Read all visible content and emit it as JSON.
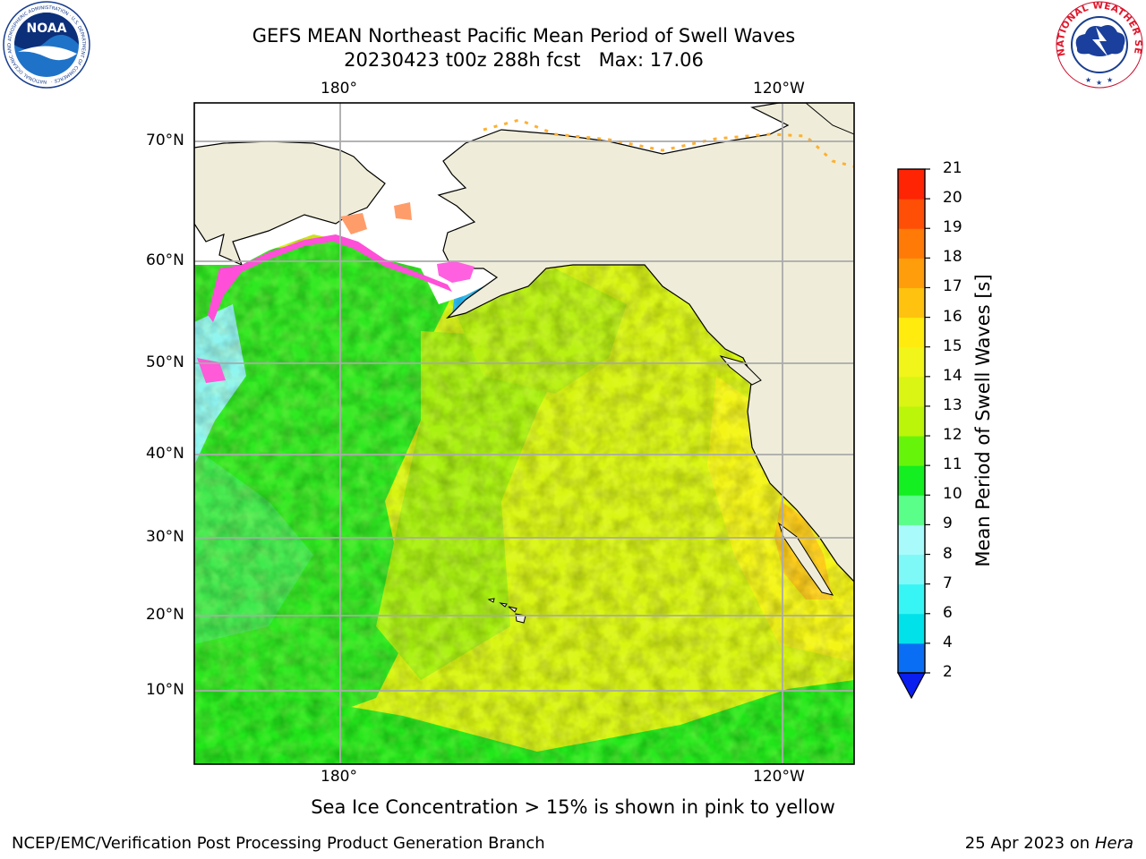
{
  "header": {
    "title_line1": "GEFS MEAN Northeast Pacific Mean Period of Swell Waves",
    "title_line2": "20230423 t00z 288h fcst   Max: 17.06"
  },
  "logos": {
    "left": "NOAA",
    "left_ring": "NATIONAL OCEANIC AND ATMOSPHERIC ADMINISTRATION · U.S. DEPARTMENT OF COMMERCE ·",
    "right_ring": "NATIONAL WEATHER SERVICE"
  },
  "map": {
    "lon_labels_top": [
      "180°",
      "120°W"
    ],
    "lon_labels_bottom": [
      "180°",
      "120°W"
    ],
    "lat_labels": [
      "70°N",
      "60°N",
      "50°N",
      "40°N",
      "30°N",
      "20°N",
      "10°N"
    ],
    "colors": {
      "land": "#efedd9",
      "gridline": "#aaaaaa"
    }
  },
  "colorbar": {
    "label": "Mean Period of Swell Waves [s]",
    "ticks": [
      "2",
      "4",
      "6",
      "7",
      "8",
      "9",
      "10",
      "11",
      "12",
      "13",
      "14",
      "15",
      "16",
      "17",
      "18",
      "19",
      "20",
      "21"
    ],
    "colors": [
      "#0a6ef5",
      "#00e1ea",
      "#38f5f5",
      "#7ff8f8",
      "#a9fbfb",
      "#59ff89",
      "#13ef21",
      "#66f50a",
      "#bbf50a",
      "#daf513",
      "#f1f51a",
      "#ffec0e",
      "#ffc20e",
      "#ff9d0a",
      "#ff7a06",
      "#ff4e06",
      "#ff2404"
    ],
    "extend_color": "#0a1ef0"
  },
  "notes": {
    "sea_ice": "Sea Ice Concentration > 15% is shown in pink to yellow"
  },
  "footer": {
    "left": "NCEP/EMC/Verification Post Processing Product Generation Branch",
    "right_prefix": "25 Apr 2023 on ",
    "right_italic": "Hera"
  }
}
